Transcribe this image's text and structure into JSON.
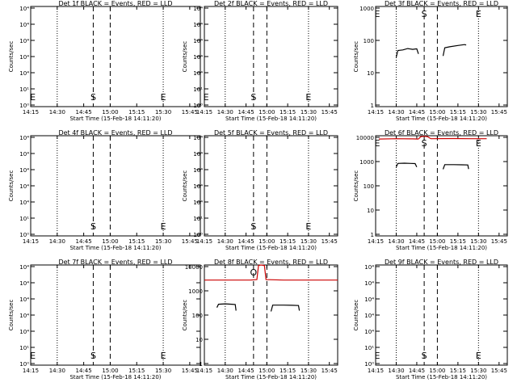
{
  "panels": [
    {
      "title": "Det 1f BLACK = Events, RED = LLD",
      "xlabel": "Start Time (15-Feb-18 14:11:20)",
      "ylabel": "Counts/sec",
      "yticks": [
        "10⁴",
        "10⁴",
        "10⁴",
        "10⁴",
        "10⁴",
        "10¹",
        "10⁰"
      ],
      "marker_labels": {
        "E1": "E",
        "S": "S",
        "E2": "E"
      },
      "chart_data": {
        "type": "line",
        "log_y": false,
        "series": []
      }
    },
    {
      "title": "Det 2f BLACK = Events, RED = LLD",
      "xlabel": "Start Time (15-Feb-18 14:11:20)",
      "ylabel": "Counts/sec",
      "yticks": [
        "10⁴",
        "10⁴",
        "10⁴",
        "10⁴",
        "10⁴",
        "10¹",
        "10⁰"
      ],
      "marker_labels": {
        "E1": "E",
        "S": "S",
        "E2": "E"
      },
      "chart_data": {
        "type": "line",
        "log_y": false,
        "series": []
      }
    },
    {
      "title": "Det 3f BLACK = Events, RED = LLD",
      "xlabel": "Start Time (15-Feb-18 14:11:20)",
      "ylabel": "Counts/sec",
      "yticks": [
        "1000",
        "100",
        "10",
        "1"
      ],
      "marker_labels": {
        "E1": "E",
        "S": "S",
        "E2": "E"
      },
      "chart_data": {
        "type": "line",
        "log_y": true,
        "ylim": [
          1,
          1000
        ],
        "series": [
          {
            "color": "#000000",
            "segments": [
              [
                [
                  14.5,
                  30
                ],
                [
                  14.52,
                  48
                ],
                [
                  14.58,
                  50
                ],
                [
                  14.64,
                  55
                ],
                [
                  14.7,
                  52
                ],
                [
                  14.75,
                  54
                ],
                [
                  14.77,
                  38
                ]
              ],
              [
                [
                  15.07,
                  33
                ],
                [
                  15.09,
                  58
                ],
                [
                  15.15,
                  62
                ],
                [
                  15.25,
                  68
                ],
                [
                  15.33,
                  72
                ],
                [
                  15.35,
                  70
                ]
              ]
            ]
          }
        ]
      }
    },
    {
      "title": "Det 4f BLACK = Events, RED = LLD",
      "xlabel": "Start Time (15-Feb-18 14:11:20)",
      "ylabel": "Counts/sec",
      "yticks": [
        "10⁴",
        "10⁴",
        "10⁴",
        "10⁴",
        "10⁴",
        "10¹",
        "10⁰"
      ],
      "marker_labels": {
        "E1": "",
        "S": "S",
        "E2": "E"
      },
      "chart_data": {
        "type": "line",
        "log_y": false,
        "series": []
      }
    },
    {
      "title": "Det 5f BLACK = Events, RED = LLD",
      "xlabel": "Start Time (15-Feb-18 14:11:20)",
      "ylabel": "Counts/sec",
      "yticks": [
        "10⁴",
        "10⁴",
        "10⁴",
        "10⁴",
        "10⁴",
        "10¹",
        "10⁰"
      ],
      "marker_labels": {
        "E1": "",
        "S": "S",
        "E2": "E"
      },
      "chart_data": {
        "type": "line",
        "log_y": false,
        "series": []
      }
    },
    {
      "title": "Det 6f BLACK = Events, RED = LLD",
      "xlabel": "Start Time (15-Feb-18 14:11:20)",
      "ylabel": "Counts/sec",
      "yticks": [
        "10000",
        "1000",
        "100",
        "10",
        "1"
      ],
      "marker_labels": {
        "E1": "E",
        "S": "S",
        "E2": "E"
      },
      "chart_data": {
        "type": "line",
        "log_y": true,
        "ylim": [
          1,
          10000
        ],
        "series": [
          {
            "color": "#cc0000",
            "segments": [
              [
                [
                  14.29,
                  7400
                ],
                [
                  14.5,
                  7600
                ],
                [
                  14.7,
                  7500
                ],
                [
                  14.77,
                  7400
                ]
              ],
              [
                [
                  14.77,
                  7400
                ],
                [
                  14.8,
                  9200
                ],
                [
                  14.84,
                  9500
                ],
                [
                  14.88,
                  9200
                ],
                [
                  14.92,
                  7600
                ],
                [
                  15.2,
                  7700
                ],
                [
                  15.4,
                  7600
                ],
                [
                  15.6,
                  7600
                ]
              ]
            ]
          },
          {
            "color": "#000000",
            "segments": [
              [
                [
                  14.5,
                  560
                ],
                [
                  14.52,
                  780
                ],
                [
                  14.6,
                  800
                ],
                [
                  14.68,
                  780
                ],
                [
                  14.73,
                  770
                ],
                [
                  14.75,
                  560
                ]
              ],
              [
                [
                  15.07,
                  460
                ],
                [
                  15.09,
                  700
                ],
                [
                  15.2,
                  700
                ],
                [
                  15.3,
                  690
                ],
                [
                  15.37,
                  680
                ],
                [
                  15.38,
                  470
                ]
              ]
            ]
          }
        ]
      }
    },
    {
      "title": "Det 7f BLACK = Events, RED = LLD",
      "xlabel": "Start Time (15-Feb-18 14:11:20)",
      "ylabel": "Counts/sec",
      "yticks": [
        "10⁴",
        "10⁴",
        "10⁴",
        "10⁴",
        "10⁴",
        "10¹",
        "10⁰"
      ],
      "marker_labels": {
        "E1": "E",
        "S": "S",
        "E2": "E"
      },
      "chart_data": {
        "type": "line",
        "log_y": false,
        "series": []
      }
    },
    {
      "title": "Det 8f BLACK = Events, RED = LLD",
      "xlabel": "Start Time (15-Feb-18 14:11:20)",
      "ylabel": "Counts/sec",
      "yticks": [
        "10000",
        "1000",
        "100",
        "10",
        "1"
      ],
      "marker_labels": {
        "E1": "",
        "S": "O",
        "E2": ""
      },
      "chart_data": {
        "type": "line",
        "log_y": true,
        "ylim": [
          1,
          10000
        ],
        "series": [
          {
            "color": "#cc0000",
            "segments": [
              [
                [
                  14.25,
                  2500
                ],
                [
                  14.4,
                  2500
                ],
                [
                  14.6,
                  2500
                ],
                [
                  14.8,
                  2500
                ],
                [
                  14.88,
                  2600
                ],
                [
                  14.9,
                  9500
                ],
                [
                  14.93,
                  11000
                ],
                [
                  14.97,
                  9500
                ],
                [
                  14.99,
                  2600
                ],
                [
                  15.2,
                  2500
                ],
                [
                  15.5,
                  2500
                ],
                [
                  15.85,
                  2500
                ]
              ]
            ]
          },
          {
            "color": "#000000",
            "segments": [
              [
                [
                  14.4,
                  200
                ],
                [
                  14.42,
                  270
                ],
                [
                  14.5,
                  280
                ],
                [
                  14.58,
                  270
                ],
                [
                  14.62,
                  265
                ],
                [
                  14.63,
                  150
                ]
              ],
              [
                [
                  15.05,
                  140
                ],
                [
                  15.07,
                  250
                ],
                [
                  15.2,
                  250
                ],
                [
                  15.3,
                  245
                ],
                [
                  15.38,
                  240
                ],
                [
                  15.39,
                  150
                ]
              ]
            ]
          }
        ]
      }
    },
    {
      "title": "Det 9f BLACK = Events, RED = LLD",
      "xlabel": "Start Time (15-Feb-18 14:11:20)",
      "ylabel": "Counts/sec",
      "yticks": [
        "10⁴",
        "10⁴",
        "10⁴",
        "10⁴",
        "10⁴",
        "10¹",
        "10⁰"
      ],
      "marker_labels": {
        "E1": "E",
        "S": "S",
        "E2": "E"
      },
      "chart_data": {
        "type": "line",
        "log_y": false,
        "series": []
      }
    }
  ],
  "xticks": [
    "14:15",
    "14:30",
    "14:45",
    "15:00",
    "15:15",
    "15:30",
    "15:45"
  ]
}
